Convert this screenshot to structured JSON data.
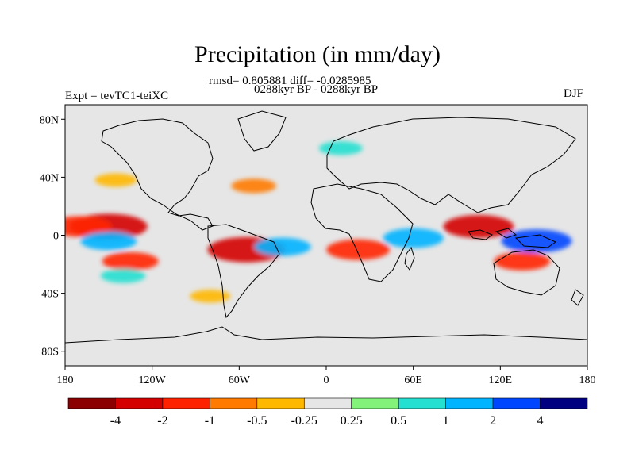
{
  "title": "Precipitation (in mm/day)",
  "stats_line": "rmsd= 0.805881 diff= -0.0285985",
  "period_line": "0288kyr BP - 0288kyr BP",
  "experiment_label": "Expt = tevTC1-teiXC",
  "season_label": "DJF",
  "chart_data": {
    "type": "heatmap",
    "variable": "Precipitation difference",
    "units": "mm/day",
    "x_axis": {
      "label": "",
      "ticks": [
        "180",
        "120W",
        "60W",
        "0",
        "60E",
        "120E",
        "180"
      ],
      "values": [
        -180,
        -120,
        -60,
        0,
        60,
        120,
        180
      ],
      "range": [
        -180,
        180
      ]
    },
    "y_axis": {
      "label": "",
      "ticks": [
        "80N",
        "40N",
        "0",
        "40S",
        "80S"
      ],
      "values": [
        80,
        40,
        0,
        -40,
        -80
      ],
      "range": [
        -90,
        90
      ]
    },
    "colorbar": {
      "orientation": "horizontal",
      "colors": [
        "#8b0000",
        "#d40000",
        "#ff2200",
        "#ff7a00",
        "#ffb800",
        "#e6e6e6",
        "#82f27a",
        "#24e0d0",
        "#00b4ff",
        "#0046ff",
        "#000080"
      ],
      "labels": [
        "-4",
        "-2",
        "-1",
        "-0.5",
        "-0.25",
        "0.25",
        "0.5",
        "1",
        "2",
        "4"
      ],
      "levels": [
        -4,
        -2,
        -1,
        -0.5,
        -0.25,
        0.25,
        0.5,
        1,
        2,
        4
      ]
    },
    "features": [
      {
        "name": "east-pacific-itcz-dry",
        "lon": -150,
        "lat": 6,
        "value": -3.0
      },
      {
        "name": "central-pacific-dry",
        "lon": -170,
        "lat": 6,
        "value": -2.0
      },
      {
        "name": "equatorial-pacific-wet",
        "lon": -150,
        "lat": -4,
        "value": 1.5
      },
      {
        "name": "south-pacific-dry-band",
        "lon": -135,
        "lat": -18,
        "value": -1.5
      },
      {
        "name": "south-pacific-wet-band",
        "lon": -140,
        "lat": -28,
        "value": 0.7
      },
      {
        "name": "amazon-dry",
        "lon": -55,
        "lat": -10,
        "value": -3.0
      },
      {
        "name": "south-atlantic-wet",
        "lon": -30,
        "lat": -8,
        "value": 1.5
      },
      {
        "name": "central-africa-dry",
        "lon": 22,
        "lat": -10,
        "value": -2.0
      },
      {
        "name": "indian-ocean-wet",
        "lon": 60,
        "lat": -2,
        "value": 1.8
      },
      {
        "name": "maritime-continent-dry",
        "lon": 105,
        "lat": 6,
        "value": -2.5
      },
      {
        "name": "western-pacific-wet",
        "lon": 145,
        "lat": -4,
        "value": 2.5
      },
      {
        "name": "australia-dry",
        "lon": 135,
        "lat": -18,
        "value": -1.5
      },
      {
        "name": "north-atlantic-dry",
        "lon": -50,
        "lat": 34,
        "value": -0.7
      },
      {
        "name": "north-pacific-dry",
        "lon": -145,
        "lat": 38,
        "value": -0.5
      },
      {
        "name": "north-europe-wet",
        "lon": 10,
        "lat": 60,
        "value": 0.6
      },
      {
        "name": "southern-ocean-dry",
        "lon": -80,
        "lat": -42,
        "value": -0.4
      }
    ]
  }
}
